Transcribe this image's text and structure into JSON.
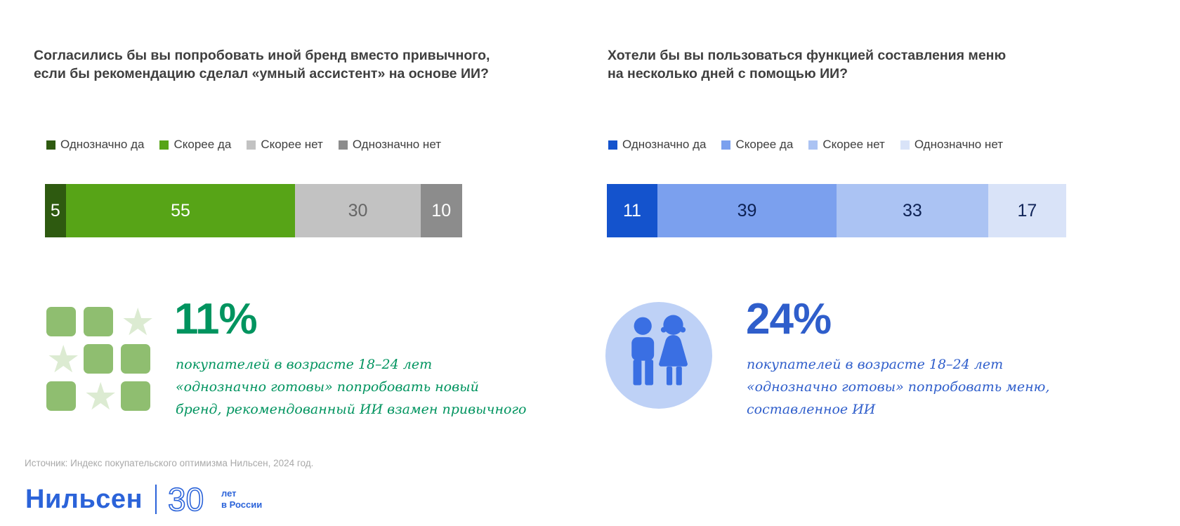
{
  "left_panel": {
    "title_line1": "Согласились бы вы попробовать иной бренд вместо привычного,",
    "title_line2": "если бы рекомендацию сделал «умный ассистент» на основе ИИ?",
    "stat": {
      "value": "11%",
      "description": "покупателей в возрасте 18–24 лет «однозначно готовы» попробовать новый бренд, рекомендованный ИИ взамен привычного",
      "icon": "squares-and-stars-grid",
      "icon_pattern": [
        "square",
        "square",
        "star",
        "star",
        "square",
        "square",
        "square",
        "star",
        "square"
      ],
      "accent_color": "#00945f"
    }
  },
  "right_panel": {
    "title_line1": "Хотели бы вы пользоваться функцией составления меню",
    "title_line2": "на несколько дней с помощью ИИ?",
    "stat": {
      "value": "24%",
      "description": "покупателей в возрасте 18–24 лет «однозначно готовы» попробовать меню, составленное ИИ",
      "icon": "couple-in-circle",
      "accent_color": "#2f5ecb"
    }
  },
  "footer": {
    "source": "Источник: Индекс покупательского оптимизма Нильсен, 2024 год.",
    "logo_brand": "Нильсен",
    "logo_number": "30",
    "logo_caption_line1": "лет",
    "logo_caption_line2": "в России",
    "logo_color": "#2b63d9"
  },
  "chart_data": [
    {
      "type": "bar",
      "subtype": "horizontal-stacked",
      "title": "Согласились бы вы попробовать иной бренд вместо привычного, если бы рекомендацию сделал «умный ассистент» на основе ИИ?",
      "categories": [
        "Однозначно да",
        "Скорее да",
        "Скорее нет",
        "Однозначно нет"
      ],
      "values": [
        5,
        55,
        30,
        10
      ],
      "unit": "percent",
      "xlim": [
        0,
        100
      ],
      "colors": [
        "#2e5a10",
        "#57a417",
        "#c2c2c2",
        "#8c8c8c"
      ],
      "value_label_colors": [
        "#ffffff",
        "#ffffff",
        "#666666",
        "#ffffff"
      ],
      "legend_position": "top",
      "grid": false
    },
    {
      "type": "bar",
      "subtype": "horizontal-stacked",
      "title": "Хотели бы вы пользоваться функцией составления меню на несколько дней с помощью ИИ?",
      "categories": [
        "Однозначно да",
        "Скорее да",
        "Скорее нет",
        "Однозначно нет"
      ],
      "values": [
        11,
        39,
        33,
        17
      ],
      "unit": "percent",
      "xlim": [
        0,
        100
      ],
      "colors": [
        "#1453cd",
        "#7ba0ee",
        "#abc3f3",
        "#d9e3f8"
      ],
      "value_label_colors": [
        "#ffffff",
        "#0d2153",
        "#0d2153",
        "#12265a"
      ],
      "legend_position": "top",
      "grid": false
    }
  ]
}
